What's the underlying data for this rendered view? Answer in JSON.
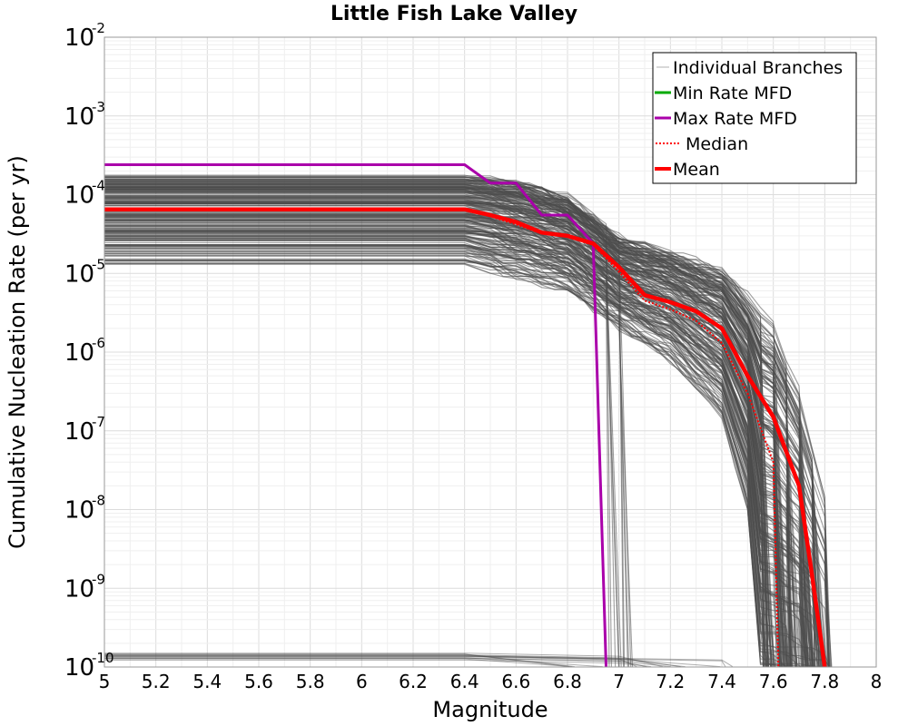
{
  "chart_data": {
    "type": "line",
    "title": "Little Fish Lake Valley",
    "xlabel": "Magnitude",
    "ylabel": "Cumulative Nucleation Rate (per yr)",
    "xlim": [
      5,
      8
    ],
    "ylim": [
      1e-10,
      0.01
    ],
    "yscale": "log",
    "grid": true,
    "x_ticks": [
      "5",
      "5.2",
      "5.4",
      "5.6",
      "5.8",
      "6",
      "6.2",
      "6.4",
      "6.6",
      "6.8",
      "7",
      "7.2",
      "7.4",
      "7.6",
      "7.8",
      "8"
    ],
    "y_ticks": [
      {
        "base": "10",
        "exp": "-10",
        "value": 1e-10
      },
      {
        "base": "10",
        "exp": "-9",
        "value": 1e-09
      },
      {
        "base": "10",
        "exp": "-8",
        "value": 1e-08
      },
      {
        "base": "10",
        "exp": "-7",
        "value": 1e-07
      },
      {
        "base": "10",
        "exp": "-6",
        "value": 1e-06
      },
      {
        "base": "10",
        "exp": "-5",
        "value": 1e-05
      },
      {
        "base": "10",
        "exp": "-4",
        "value": 0.0001
      },
      {
        "base": "10",
        "exp": "-3",
        "value": 0.001
      },
      {
        "base": "10",
        "exp": "-2",
        "value": 0.01
      }
    ],
    "legend_position": "top-right",
    "series": [
      {
        "name": "Individual Branches",
        "color": "#4d4d4d",
        "style": "thin",
        "envelope": {
          "upper": [
            [
              5,
              0.00018
            ],
            [
              6.4,
              0.00018
            ],
            [
              6.6,
              0.00016
            ],
            [
              6.8,
              0.0001
            ],
            [
              7.0,
              3e-05
            ],
            [
              7.2,
              2e-05
            ],
            [
              7.4,
              1.2e-05
            ],
            [
              7.6,
              2.5e-06
            ],
            [
              7.7,
              4e-07
            ],
            [
              7.8,
              2e-08
            ],
            [
              7.82,
              1e-10
            ]
          ],
          "lower": [
            [
              5,
              1.3e-05
            ],
            [
              6.4,
              1.3e-05
            ],
            [
              6.6,
              9e-06
            ],
            [
              6.8,
              6e-06
            ],
            [
              7.0,
              2e-06
            ],
            [
              7.2,
              8e-07
            ],
            [
              7.4,
              1.5e-07
            ],
            [
              7.5,
              1e-08
            ],
            [
              7.55,
              1e-10
            ]
          ]
        },
        "low_band": [
          [
            5,
            1.2e-10
          ],
          [
            6.4,
            1.2e-10
          ],
          [
            7.0,
            1.1e-10
          ],
          [
            7.4,
            1.05e-10
          ]
        ]
      },
      {
        "name": "Min Rate MFD",
        "color": "#00aa00",
        "points": []
      },
      {
        "name": "Max Rate MFD",
        "color": "#aa00aa",
        "points": [
          [
            5,
            0.00024
          ],
          [
            6.4,
            0.00024
          ],
          [
            6.5,
            0.00014
          ],
          [
            6.6,
            0.00014
          ],
          [
            6.7,
            5.5e-05
          ],
          [
            6.8,
            5.5e-05
          ],
          [
            6.9,
            2.4e-05
          ],
          [
            6.95,
            1e-10
          ]
        ]
      },
      {
        "name": "Median",
        "color": "#ff0000",
        "style": "dotted",
        "points": [
          [
            5,
            6.5e-05
          ],
          [
            6.4,
            6.5e-05
          ],
          [
            6.5,
            5.3e-05
          ],
          [
            6.6,
            4.2e-05
          ],
          [
            6.7,
            3.2e-05
          ],
          [
            6.8,
            2.9e-05
          ],
          [
            6.9,
            2.3e-05
          ],
          [
            7.0,
            1.05e-05
          ],
          [
            7.1,
            4.5e-06
          ],
          [
            7.2,
            3.5e-06
          ],
          [
            7.3,
            2.5e-06
          ],
          [
            7.4,
            1.3e-06
          ],
          [
            7.5,
            3e-07
          ],
          [
            7.6,
            4e-08
          ],
          [
            7.62,
            1e-10
          ]
        ]
      },
      {
        "name": "Mean",
        "color": "#ff0000",
        "style": "thick",
        "points": [
          [
            5,
            6.5e-05
          ],
          [
            6.4,
            6.5e-05
          ],
          [
            6.5,
            5.5e-05
          ],
          [
            6.6,
            4.5e-05
          ],
          [
            6.7,
            3.3e-05
          ],
          [
            6.8,
            3e-05
          ],
          [
            6.9,
            2.4e-05
          ],
          [
            7.0,
            1.2e-05
          ],
          [
            7.1,
            5.3e-06
          ],
          [
            7.2,
            4.3e-06
          ],
          [
            7.3,
            3.3e-06
          ],
          [
            7.4,
            2e-06
          ],
          [
            7.5,
            5e-07
          ],
          [
            7.6,
            1.5e-07
          ],
          [
            7.7,
            2e-08
          ],
          [
            7.75,
            1.5e-09
          ],
          [
            7.8,
            1e-10
          ]
        ]
      }
    ]
  }
}
